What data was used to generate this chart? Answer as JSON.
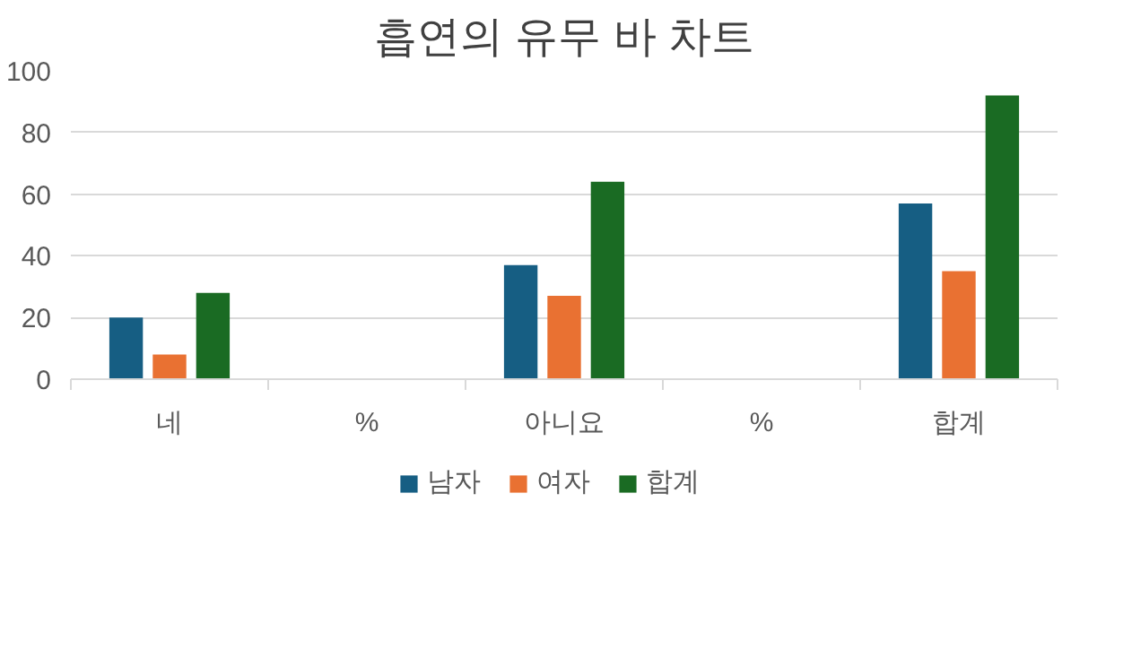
{
  "chart_data": {
    "type": "bar",
    "title": "흡연의 유무 바 차트",
    "categories": [
      "네",
      "%",
      "아니요",
      "%",
      "합계"
    ],
    "series": [
      {
        "name": "남자",
        "color": "#165e83",
        "values": [
          20,
          null,
          37,
          null,
          57
        ]
      },
      {
        "name": "여자",
        "color": "#e97132",
        "values": [
          8,
          null,
          27,
          null,
          35
        ]
      },
      {
        "name": "합계",
        "color": "#1a6b23",
        "values": [
          28,
          null,
          64,
          null,
          92
        ]
      }
    ],
    "ylim": [
      0,
      100
    ],
    "yticks": [
      0,
      20,
      40,
      60,
      80,
      100
    ],
    "grid": "y",
    "legend": "bottom"
  }
}
